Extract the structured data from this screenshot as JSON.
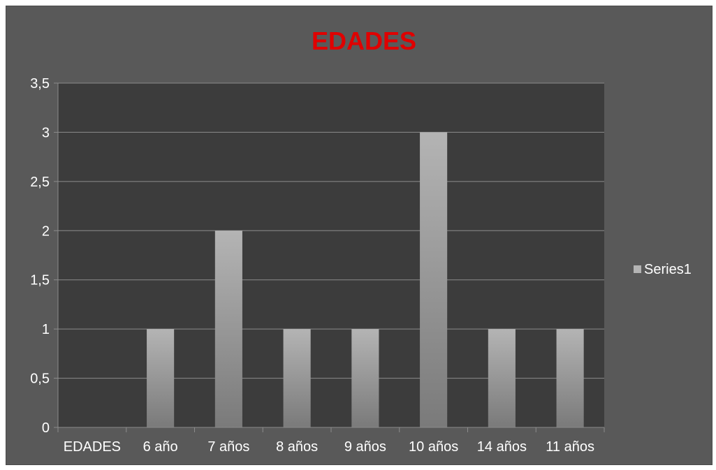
{
  "chart_data": {
    "type": "bar",
    "title": "EDADES",
    "categories": [
      "EDADES",
      "6 año",
      "7 años",
      "8 años",
      "9 años",
      "10 años",
      "14 años",
      "11 años"
    ],
    "series": [
      {
        "name": "Series1",
        "values": [
          0,
          1,
          2,
          1,
          1,
          3,
          1,
          1
        ]
      }
    ],
    "ylim": [
      0,
      3.5
    ],
    "yticks": [
      "0",
      "0,5",
      "1",
      "1,5",
      "2",
      "2,5",
      "3",
      "3,5"
    ],
    "grid": true,
    "legend": "right",
    "colors": {
      "title": "#e00000",
      "background": "#595959",
      "plot_area": "#3c3c3c",
      "bar_top": "#b4b4b4",
      "bar_bottom": "#7a7a7a",
      "gridline": "#8c8c8c",
      "text": "#ffffff"
    }
  }
}
